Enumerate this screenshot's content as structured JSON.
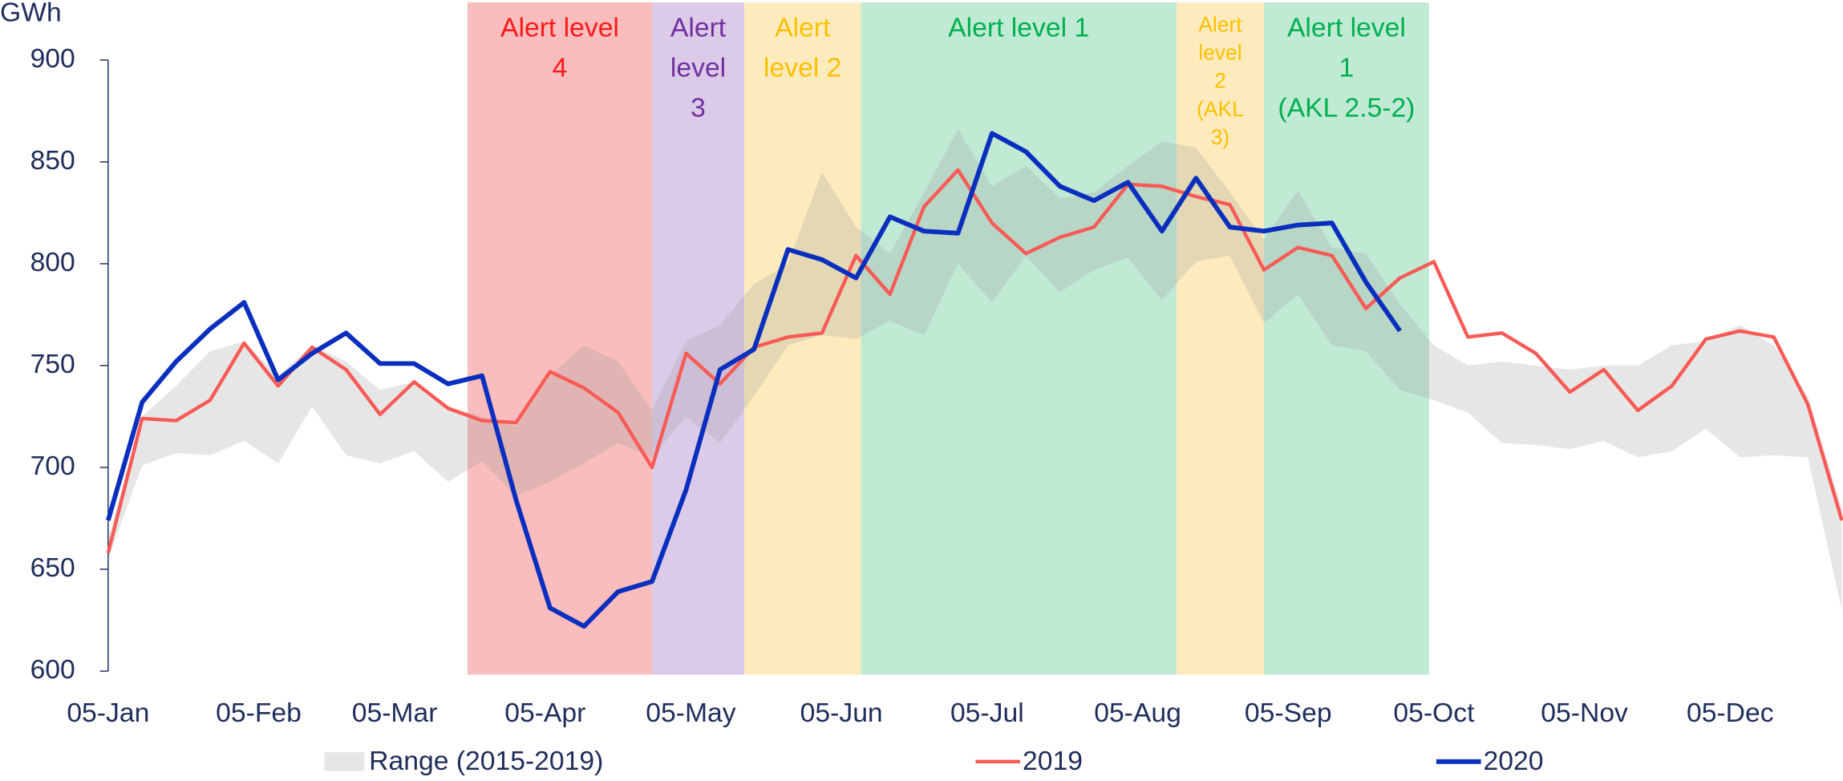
{
  "chart_data": {
    "type": "line",
    "y_unit": "GWh",
    "x": [
      0,
      7,
      14,
      21,
      28,
      35,
      42,
      49,
      56,
      63,
      70,
      77,
      84,
      91,
      98,
      105,
      112,
      119,
      126,
      133,
      140,
      147,
      154,
      161,
      168,
      175,
      182,
      189,
      196,
      203,
      210,
      217,
      224,
      231,
      238,
      245,
      252,
      259,
      266,
      273,
      280,
      287,
      294,
      301,
      308,
      315,
      322,
      329,
      336,
      343,
      350,
      357
    ],
    "xlim": [
      0,
      357
    ],
    "xticks": [
      {
        "value": 0,
        "label": "05-Jan"
      },
      {
        "value": 31,
        "label": "05-Feb"
      },
      {
        "value": 59,
        "label": "05-Mar"
      },
      {
        "value": 90,
        "label": "05-Apr"
      },
      {
        "value": 120,
        "label": "05-May"
      },
      {
        "value": 151,
        "label": "05-Jun"
      },
      {
        "value": 181,
        "label": "05-Jul"
      },
      {
        "value": 212,
        "label": "05-Aug"
      },
      {
        "value": 243,
        "label": "05-Sep"
      },
      {
        "value": 273,
        "label": "05-Oct"
      },
      {
        "value": 304,
        "label": "05-Nov"
      },
      {
        "value": 334,
        "label": "05-Dec"
      }
    ],
    "ylim": [
      600,
      900
    ],
    "yticks": [
      600,
      650,
      700,
      750,
      800,
      850,
      900
    ],
    "range": {
      "name": "Range (2015-2019)",
      "color": "#9a9a9a",
      "high": [
        665,
        725,
        740,
        757,
        762,
        745,
        760,
        752,
        738,
        742,
        730,
        725,
        720,
        745,
        760,
        752,
        728,
        762,
        770,
        790,
        800,
        845,
        818,
        805,
        835,
        866,
        838,
        848,
        832,
        835,
        848,
        860,
        857,
        835,
        812,
        836,
        808,
        805,
        780,
        760,
        750,
        752,
        750,
        748,
        750,
        750,
        760,
        762,
        770,
        760,
        735,
        680
      ],
      "low": [
        655,
        701,
        707,
        706,
        713,
        702,
        730,
        706,
        702,
        708,
        693,
        703,
        686,
        693,
        702,
        712,
        705,
        725,
        712,
        735,
        760,
        765,
        763,
        772,
        765,
        800,
        781,
        804,
        786,
        797,
        803,
        782,
        801,
        804,
        771,
        785,
        760,
        757,
        738,
        733,
        727,
        712,
        711,
        709,
        713,
        705,
        708,
        719,
        705,
        706,
        705,
        630
      ]
    },
    "series": [
      {
        "name": "2019",
        "color": "#f85a55",
        "values": [
          658,
          724,
          723,
          733,
          761,
          740,
          759,
          748,
          726,
          742,
          729,
          723,
          722,
          747,
          739,
          727,
          700,
          756,
          741,
          759,
          764,
          766,
          804,
          785,
          828,
          846,
          820,
          805,
          813,
          818,
          839,
          838,
          833,
          829,
          797,
          808,
          804,
          778,
          793,
          801,
          764,
          766,
          756,
          737,
          748,
          728,
          740,
          763,
          767,
          764,
          731,
          674
        ]
      },
      {
        "name": "2020",
        "color": "#0a2fbf",
        "values": [
          674,
          732,
          752,
          768,
          781,
          743,
          756,
          766,
          751,
          751,
          741,
          745,
          684,
          631,
          622,
          639,
          644,
          689,
          748,
          758,
          807,
          802,
          793,
          823,
          816,
          815,
          864,
          855,
          838,
          831,
          840,
          816,
          842,
          818,
          816,
          819,
          820,
          791,
          767,
          null,
          null,
          null,
          null,
          null,
          null,
          null,
          null,
          null,
          null,
          null,
          null,
          null
        ]
      }
    ],
    "alert_levels": [
      {
        "lines": [
          "Alert level",
          "4"
        ],
        "start": 74,
        "end": 112,
        "fill": "#f9bdbd",
        "color": "#ff1a1a"
      },
      {
        "lines": [
          "Alert",
          "level",
          "3"
        ],
        "start": 112,
        "end": 131,
        "fill": "#dccbe8",
        "color": "#7030a0"
      },
      {
        "lines": [
          "Alert",
          "level 2"
        ],
        "start": 131,
        "end": 155,
        "fill": "#fdebbd",
        "color": "#ffc000"
      },
      {
        "lines": [
          "Alert level 1"
        ],
        "start": 155,
        "end": 220,
        "fill": "#c0ead4",
        "color": "#00b050"
      },
      {
        "lines": [
          "Alert",
          "level",
          "2",
          "(AKL",
          "3)"
        ],
        "start": 220,
        "end": 238,
        "fill": "#fdebbd",
        "color": "#ffc000"
      },
      {
        "lines": [
          "Alert level",
          "1",
          "(AKL 2.5-2)"
        ],
        "start": 238,
        "end": 272,
        "fill": "#c0ead4",
        "color": "#00b050"
      }
    ]
  }
}
